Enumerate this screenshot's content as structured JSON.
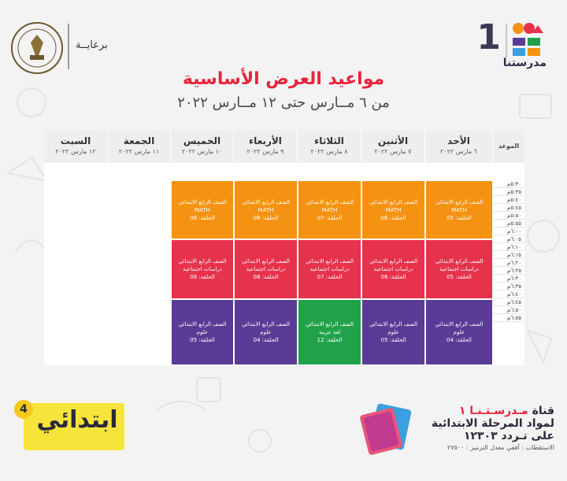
{
  "header": {
    "logo_number": "1",
    "logo_text": "مدرستنا",
    "sponsor_label": "برعايــة",
    "title": "مواعيد العرض الأساسية",
    "subtitle": "من ٦ مــارس حتى ١٢ مــارس ٢٠٢٢"
  },
  "schedule": {
    "time_header": "الموعد",
    "days": [
      {
        "name": "الأحد",
        "date": "٦ مارس ٢٠٢٢"
      },
      {
        "name": "الأثنين",
        "date": "٧ مارس ٢٠٢٢"
      },
      {
        "name": "الثلاثاء",
        "date": "٨ مارس ٢٠٢٢"
      },
      {
        "name": "الأربعاء",
        "date": "٩ مارس ٢٠٢٢"
      },
      {
        "name": "الخميس",
        "date": "١٠ مارس ٢٠٢٢"
      },
      {
        "name": "الجمعة",
        "date": "١١ مارس ٢٠٢٢"
      },
      {
        "name": "السبت",
        "date": "١٢ مارس ٢٠٢٢"
      }
    ],
    "times": [
      "٥:٣٠م",
      "٥:٣٥م",
      "٥:٤٠م",
      "٥:٤٥م",
      "٥:٥٠م",
      "٥:٥٥م",
      "٦:٠٠م",
      "٦:٠٥م",
      "٦:١٠م",
      "٦:١٥م",
      "٦:٢٠م",
      "٦:٢٥م",
      "٦:٣٠م",
      "٦:٣٥م",
      "٦:٤٠م",
      "٦:٤٥م",
      "٦:٥٠م",
      "٦:٥٥م"
    ],
    "blocks": [
      [
        {
          "grade": "الصف الرابع الابتدائي",
          "subject": "MATH",
          "episode": "الحلقة: 05",
          "color": "#f59212"
        },
        {
          "grade": "الصف الرابع الابتدائي",
          "subject": "دراسات اجتماعية",
          "episode": "الحلقة: 05",
          "color": "#e6324a"
        },
        {
          "grade": "الصف الرابع الابتدائي",
          "subject": "علوم",
          "episode": "الحلقة: 04",
          "color": "#5a3c96"
        }
      ],
      [
        {
          "grade": "الصف الرابع الابتدائي",
          "subject": "MATH",
          "episode": "الحلقة: 06",
          "color": "#f59212"
        },
        {
          "grade": "الصف الرابع الابتدائي",
          "subject": "دراسات اجتماعية",
          "episode": "الحلقة: 06",
          "color": "#e6324a"
        },
        {
          "grade": "الصف الرابع الابتدائي",
          "subject": "علوم",
          "episode": "الحلقة: 05",
          "color": "#5a3c96"
        }
      ],
      [
        {
          "grade": "الصف الرابع الابتدائي",
          "subject": "MATH",
          "episode": "الحلقة: 07",
          "color": "#f59212"
        },
        {
          "grade": "الصف الرابع الابتدائي",
          "subject": "دراسات اجتماعية",
          "episode": "الحلقة: 07",
          "color": "#e6324a"
        },
        {
          "grade": "الصف الرابع الابتدائي",
          "subject": "لغة عربية",
          "episode": "الحلقة: 12",
          "color": "#21a24a"
        }
      ],
      [
        {
          "grade": "الصف الرابع الابتدائي",
          "subject": "MATH",
          "episode": "الحلقة: 08",
          "color": "#f59212"
        },
        {
          "grade": "الصف الرابع الابتدائي",
          "subject": "دراسات اجتماعية",
          "episode": "الحلقة: 08",
          "color": "#e6324a"
        },
        {
          "grade": "الصف الرابع الابتدائي",
          "subject": "علوم",
          "episode": "الحلقة: 04",
          "color": "#5a3c96"
        }
      ],
      [
        {
          "grade": "الصف الرابع الابتدائي",
          "subject": "MATH",
          "episode": "الحلقة: 08",
          "color": "#f59212"
        },
        {
          "grade": "الصف الرابع الابتدائي",
          "subject": "دراسات اجتماعية",
          "episode": "الحلقة: 08",
          "color": "#e6324a"
        },
        {
          "grade": "الصف الرابع الابتدائي",
          "subject": "علوم",
          "episode": "الحلقة: 05",
          "color": "#5a3c96"
        }
      ]
    ]
  },
  "footer": {
    "brand_text": "ابتدائي",
    "brand_number": "4",
    "channel_prefix": "قناة",
    "channel_name": "مـدرسـتـنـا ١",
    "channel_line2": "لمواد المرحلة الابتدائية",
    "channel_line3": "على تـردد ١٢٣٠٣",
    "reception": "الاستقطاب : أفقي معدل الترميز : ٢٧٥٠٠"
  }
}
